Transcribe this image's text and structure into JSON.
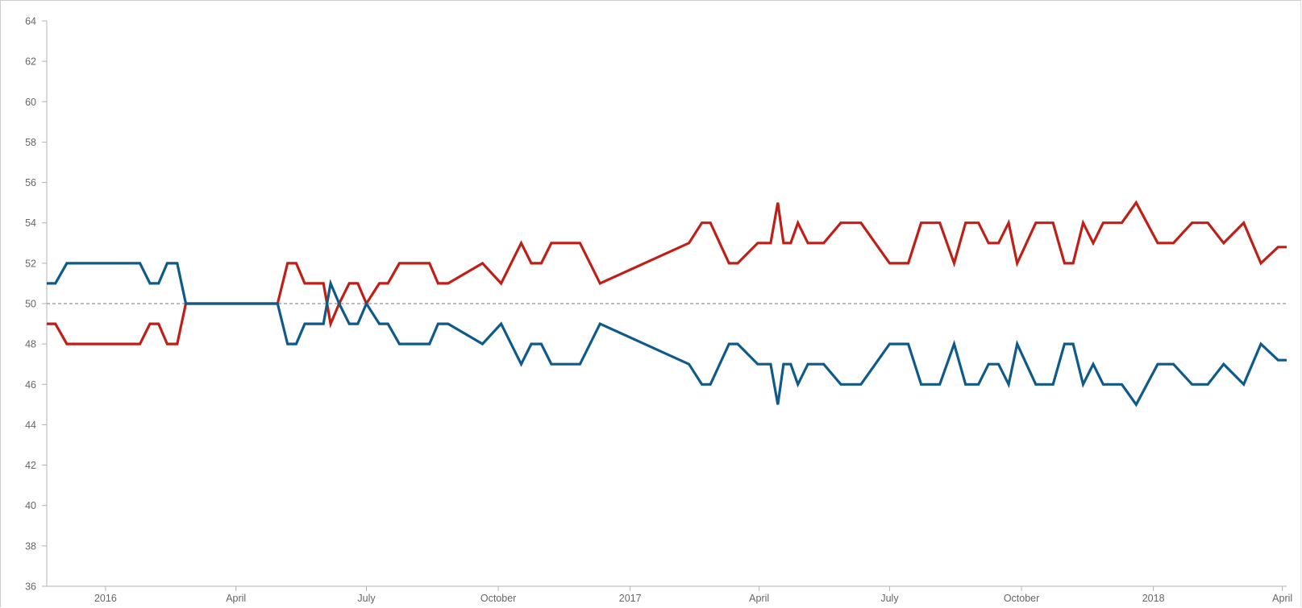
{
  "chart_data": {
    "type": "line",
    "title": "",
    "xlabel": "",
    "ylabel": "",
    "ylim": [
      36,
      64
    ],
    "yticks": [
      36,
      38,
      40,
      42,
      44,
      46,
      48,
      50,
      52,
      54,
      56,
      58,
      60,
      62,
      64
    ],
    "reference_line": 50,
    "x_domain": [
      "2015-11-21",
      "2018-04-04"
    ],
    "x_ticks": [
      {
        "date": "2016-01-01",
        "label": "2016"
      },
      {
        "date": "2016-04-01",
        "label": "April"
      },
      {
        "date": "2016-07-01",
        "label": "July"
      },
      {
        "date": "2016-10-01",
        "label": "October"
      },
      {
        "date": "2017-01-01",
        "label": "2017"
      },
      {
        "date": "2017-04-01",
        "label": "April"
      },
      {
        "date": "2017-07-01",
        "label": "July"
      },
      {
        "date": "2017-10-01",
        "label": "October"
      },
      {
        "date": "2018-01-01",
        "label": "2018"
      },
      {
        "date": "2018-04-01",
        "label": "April"
      }
    ],
    "colors": {
      "red": "#bf1f16",
      "blue": "#0e5a8a"
    },
    "x": [
      "2015-11-21",
      "2015-11-27",
      "2015-12-05",
      "2016-01-17",
      "2016-01-25",
      "2016-02-01",
      "2016-02-07",
      "2016-02-13",
      "2016-02-20",
      "2016-02-26",
      "2016-03-06",
      "2016-04-30",
      "2016-05-07",
      "2016-05-13",
      "2016-05-19",
      "2016-05-26",
      "2016-06-01",
      "2016-06-06",
      "2016-06-12",
      "2016-06-19",
      "2016-06-25",
      "2016-07-01",
      "2016-07-10",
      "2016-07-16",
      "2016-07-24",
      "2016-08-14",
      "2016-08-20",
      "2016-08-27",
      "2016-09-20",
      "2016-10-03",
      "2016-10-17",
      "2016-10-24",
      "2016-10-31",
      "2016-11-07",
      "2016-11-27",
      "2016-12-11",
      "2017-02-11",
      "2017-02-20",
      "2017-02-26",
      "2017-03-11",
      "2017-03-17",
      "2017-03-31",
      "2017-04-09",
      "2017-04-14",
      "2017-04-18",
      "2017-04-23",
      "2017-04-28",
      "2017-05-05",
      "2017-05-16",
      "2017-05-28",
      "2017-06-11",
      "2017-07-01",
      "2017-07-14",
      "2017-07-23",
      "2017-08-05",
      "2017-08-15",
      "2017-08-23",
      "2017-09-01",
      "2017-09-08",
      "2017-09-15",
      "2017-09-22",
      "2017-09-28",
      "2017-10-11",
      "2017-10-23",
      "2017-10-31",
      "2017-11-06",
      "2017-11-13",
      "2017-11-20",
      "2017-11-27",
      "2017-12-10",
      "2017-12-20",
      "2018-01-04",
      "2018-01-15",
      "2018-01-28",
      "2018-02-08",
      "2018-02-19",
      "2018-03-05",
      "2018-03-17",
      "2018-03-29",
      "2018-04-04"
    ],
    "series": [
      {
        "name": "Red",
        "color": "#bf1f16",
        "values": [
          49,
          49,
          48,
          48,
          48,
          49,
          49,
          48,
          48,
          50,
          50,
          50,
          52,
          52,
          51,
          51,
          51,
          49,
          50,
          51,
          51,
          50,
          51,
          51,
          52,
          52,
          51,
          51,
          52,
          51,
          53,
          52,
          52,
          53,
          53,
          51,
          53,
          54,
          54,
          52,
          52,
          53,
          53,
          55,
          53,
          53,
          54,
          53,
          53,
          54,
          54,
          52,
          52,
          54,
          54,
          52,
          54,
          54,
          53,
          53,
          54,
          52,
          54,
          54,
          52,
          52,
          54,
          53,
          54,
          54,
          55,
          53,
          53,
          54,
          54,
          53,
          54,
          52,
          52.8,
          52.8
        ]
      },
      {
        "name": "Blue",
        "color": "#0e5a8a",
        "values": [
          51,
          51,
          52,
          52,
          52,
          51,
          51,
          52,
          52,
          50,
          50,
          50,
          48,
          48,
          49,
          49,
          49,
          51,
          50,
          49,
          49,
          50,
          49,
          49,
          48,
          48,
          49,
          49,
          48,
          49,
          47,
          48,
          48,
          47,
          47,
          49,
          47,
          46,
          46,
          48,
          48,
          47,
          47,
          45,
          47,
          47,
          46,
          47,
          47,
          46,
          46,
          48,
          48,
          46,
          46,
          48,
          46,
          46,
          47,
          47,
          46,
          48,
          46,
          46,
          48,
          48,
          46,
          47,
          46,
          46,
          45,
          47,
          47,
          46,
          46,
          47,
          46,
          48,
          47.2,
          47.2
        ]
      }
    ]
  }
}
